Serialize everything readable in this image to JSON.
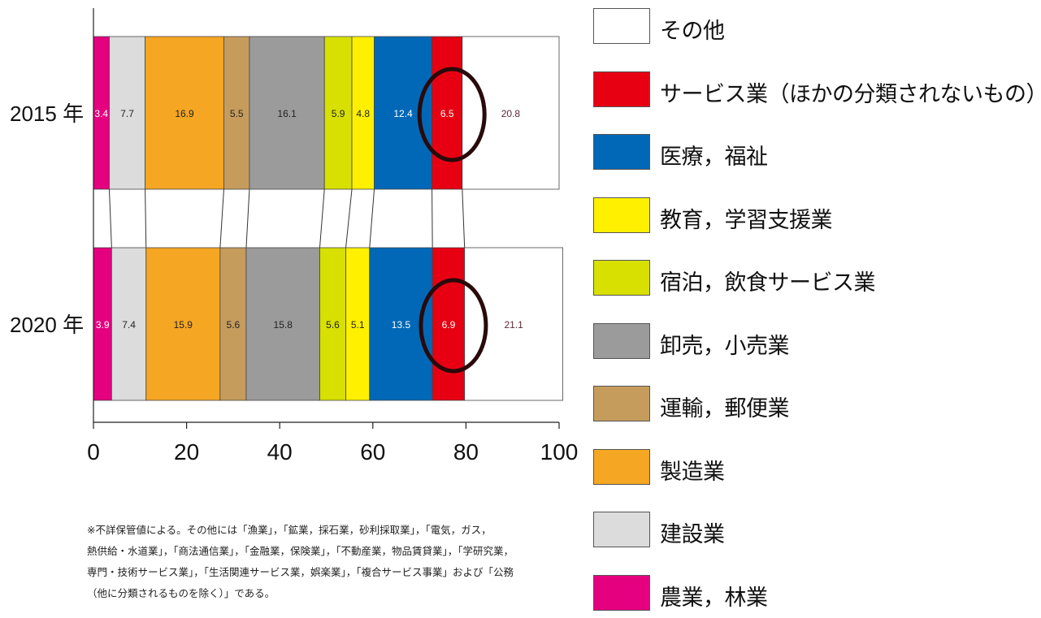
{
  "chart_data": {
    "type": "bar",
    "orientation": "horizontal",
    "stacked": true,
    "categories": [
      "2015 年",
      "2020 年"
    ],
    "series": [
      {
        "name": "農業，林業",
        "color": "#e4007f",
        "values": [
          3.4,
          3.9
        ]
      },
      {
        "name": "建設業",
        "color": "#dcdcdc",
        "values": [
          7.7,
          7.4
        ]
      },
      {
        "name": "製造業",
        "color": "#f5a623",
        "values": [
          16.9,
          15.9
        ]
      },
      {
        "name": "運輸，郵便業",
        "color": "#c69c5d",
        "values": [
          5.5,
          5.6
        ]
      },
      {
        "name": "卸売，小売業",
        "color": "#9b9b9b",
        "values": [
          16.1,
          15.8
        ]
      },
      {
        "name": "宿泊，飲食サービス業",
        "color": "#d7e000",
        "values": [
          5.9,
          5.6
        ]
      },
      {
        "name": "教育，学習支援業",
        "color": "#fff000",
        "values": [
          4.8,
          5.1
        ]
      },
      {
        "name": "医療，福祉",
        "color": "#0068b7",
        "values": [
          12.4,
          13.5
        ]
      },
      {
        "name": "サービス業（ほかの分類されないもの）",
        "color": "#e60012",
        "values": [
          6.5,
          6.9
        ]
      },
      {
        "name": "その他",
        "color": "#ffffff",
        "values": [
          20.8,
          21.1
        ]
      }
    ],
    "xlim": [
      0,
      100
    ],
    "xticks": [
      "0",
      "20",
      "40",
      "60",
      "80",
      "100"
    ],
    "highlight": {
      "series": "サービス業（ほかの分類されないもの）",
      "style": "ellipse-circle"
    },
    "legend_position": "right",
    "legend_order": [
      "その他",
      "サービス業（ほかの分類されないもの）",
      "医療，福祉",
      "教育，学習支援業",
      "宿泊，飲食サービス業",
      "卸売，小売業",
      "運輸，郵便業",
      "製造業",
      "建設業",
      "農業，林業"
    ]
  },
  "note": {
    "lines": [
      "※不詳保管値による。その他には「漁業」，「鉱業，採石業，砂利採取業」，「電気，ガス，",
      "熱供給・水道業」，「商法通信業」，「金融業，保険業」，「不動産業，物品賃貸業」，「学研究業，",
      "専門・技術サービス業」，「生活関連サービス業，娯楽業」，「複合サービス事業」および「公務",
      "（他に分類されるものを除く）」である。"
    ]
  }
}
